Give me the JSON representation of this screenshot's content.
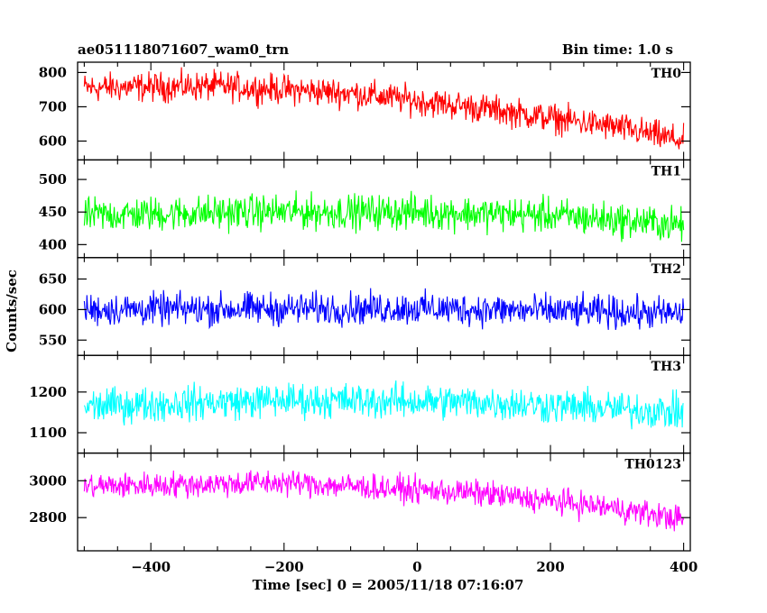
{
  "header": {
    "title": "ae051118071607_wam0_trn",
    "bin_time": "Bin time: 1.0 s"
  },
  "axes": {
    "ylabel": "Counts/sec",
    "xlabel": "Time [sec] 0 = 2005/11/18 07:16:07"
  },
  "chart_data": {
    "type": "line",
    "x_range": [
      -510,
      410
    ],
    "x_ticks": [
      -400,
      -200,
      0,
      200,
      400
    ],
    "x_tick_labels": [
      "−400",
      "−200",
      "0",
      "200",
      "400"
    ],
    "bin_time_s": 1.0,
    "series": [
      {
        "name": "TH0",
        "color": "#ff0000",
        "ylim": [
          545,
          830
        ],
        "y_ticks": [
          600,
          700,
          800
        ],
        "trend": {
          "x": [
            -500,
            -300,
            -100,
            100,
            300,
            400
          ],
          "y": [
            755,
            760,
            740,
            695,
            640,
            600
          ]
        },
        "noise_amplitude": 45
      },
      {
        "name": "TH1",
        "color": "#00ff00",
        "ylim": [
          380,
          530
        ],
        "y_ticks": [
          400,
          450,
          500
        ],
        "trend": {
          "x": [
            -500,
            -250,
            0,
            200,
            400
          ],
          "y": [
            445,
            450,
            450,
            445,
            430
          ]
        },
        "noise_amplitude": 28
      },
      {
        "name": "TH2",
        "color": "#0000ff",
        "ylim": [
          525,
          685
        ],
        "y_ticks": [
          550,
          600,
          650
        ],
        "trend": {
          "x": [
            -500,
            0,
            400
          ],
          "y": [
            600,
            602,
            593
          ]
        },
        "noise_amplitude": 28
      },
      {
        "name": "TH3",
        "color": "#00ffff",
        "ylim": [
          1050,
          1290
        ],
        "y_ticks": [
          1100,
          1200
        ],
        "trend": {
          "x": [
            -500,
            -200,
            100,
            400
          ],
          "y": [
            1165,
            1180,
            1175,
            1150
          ]
        },
        "noise_amplitude": 45
      },
      {
        "name": "TH0123",
        "color": "#ff00ff",
        "ylim": [
          2620,
          3150
        ],
        "y_ticks": [
          2800,
          3000
        ],
        "trend": {
          "x": [
            -500,
            -200,
            100,
            300,
            400
          ],
          "y": [
            2970,
            2990,
            2930,
            2850,
            2790
          ]
        },
        "noise_amplitude": 75
      }
    ]
  }
}
